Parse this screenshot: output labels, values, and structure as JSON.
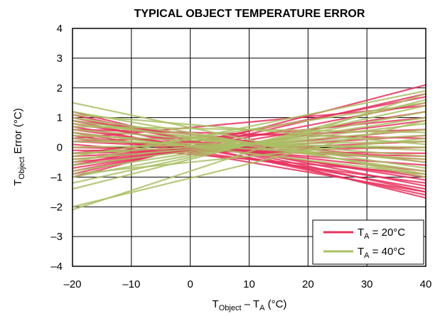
{
  "chart_data": {
    "type": "line",
    "title": "TYPICAL OBJECT TEMPERATURE ERROR",
    "xlabel": {
      "main": "T",
      "sub": "Object",
      "mid": " – T",
      "sub2": "A",
      "tail": " (°C)"
    },
    "ylabel": {
      "main": "T",
      "sub": "Object",
      "tail": " Error (°C)"
    },
    "xlim": [
      -20,
      40
    ],
    "ylim": [
      -4,
      4
    ],
    "x_ticks": [
      -20,
      -10,
      0,
      10,
      20,
      30,
      40
    ],
    "y_ticks": [
      -4,
      -3,
      -2,
      -1,
      0,
      1,
      2,
      3,
      4
    ],
    "x_tick_labels": [
      "–20",
      "–10",
      "0",
      "10",
      "20",
      "30",
      "40"
    ],
    "y_tick_labels": [
      "–4",
      "–3",
      "–2",
      "–1",
      "0",
      "1",
      "2",
      "3",
      "4"
    ],
    "grid": true,
    "legend_position": "bottom-right",
    "x": [
      -20,
      40
    ],
    "series": [
      {
        "name": "T_A = 20°C",
        "legend": {
          "main": "T",
          "sub": "A",
          "tail": " = 20°C"
        },
        "color": "#e8335e",
        "lines": [
          [
            1.2,
            -1.7
          ],
          [
            1.1,
            -1.5
          ],
          [
            1.0,
            -1.3
          ],
          [
            0.9,
            -1.6
          ],
          [
            0.8,
            -1.1
          ],
          [
            0.7,
            -1.4
          ],
          [
            0.6,
            -1.0
          ],
          [
            0.5,
            -0.8
          ],
          [
            0.4,
            -1.2
          ],
          [
            0.3,
            -0.6
          ],
          [
            0.2,
            -0.4
          ],
          [
            0.1,
            -0.9
          ],
          [
            0.0,
            -0.3
          ],
          [
            -0.1,
            -0.2
          ],
          [
            -0.2,
            0.0
          ],
          [
            -0.3,
            0.2
          ],
          [
            -0.4,
            0.4
          ],
          [
            -0.5,
            0.6
          ],
          [
            -0.6,
            0.9
          ],
          [
            -0.7,
            1.2
          ],
          [
            -0.8,
            1.5
          ],
          [
            -0.9,
            1.8
          ],
          [
            -1.0,
            2.1
          ],
          [
            0.9,
            -0.5
          ],
          [
            0.6,
            0.3
          ],
          [
            -0.2,
            1.0
          ],
          [
            0.3,
            1.4
          ],
          [
            -0.6,
            1.7
          ],
          [
            0.5,
            -1.5
          ],
          [
            0.2,
            0.6
          ]
        ]
      },
      {
        "name": "T_A = 40°C",
        "legend": {
          "main": "T",
          "sub": "A",
          "tail": " = 40°C"
        },
        "color": "#a9c064",
        "lines": [
          [
            1.5,
            -1.0
          ],
          [
            1.2,
            -0.9
          ],
          [
            1.0,
            -0.7
          ],
          [
            0.8,
            -0.5
          ],
          [
            0.6,
            -0.3
          ],
          [
            0.4,
            -0.1
          ],
          [
            0.2,
            0.0
          ],
          [
            0.0,
            0.2
          ],
          [
            -0.2,
            0.4
          ],
          [
            -0.4,
            0.6
          ],
          [
            -0.6,
            0.8
          ],
          [
            -0.8,
            1.0
          ],
          [
            -1.0,
            1.2
          ],
          [
            -1.2,
            1.4
          ],
          [
            -1.4,
            1.6
          ],
          [
            -2.1,
            1.8
          ],
          [
            -2.0,
            0.9
          ],
          [
            0.9,
            -0.8
          ],
          [
            0.7,
            0.5
          ],
          [
            -0.3,
            1.5
          ],
          [
            0.3,
            -0.4
          ],
          [
            -0.9,
            0.3
          ],
          [
            1.1,
            0.1
          ],
          [
            -0.5,
            1.9
          ],
          [
            0.5,
            -0.9
          ]
        ]
      }
    ]
  }
}
